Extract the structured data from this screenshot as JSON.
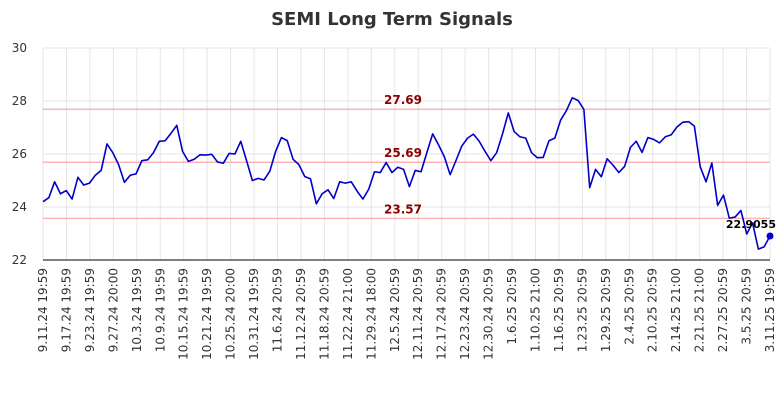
{
  "chart_data": {
    "type": "line",
    "title": "SEMI Long Term Signals",
    "ylim": [
      22,
      30
    ],
    "yticks": [
      "22",
      "24",
      "26",
      "28",
      "30"
    ],
    "ytick_values": [
      22,
      24,
      26,
      28,
      30
    ],
    "xtick_labels": [
      "9.11.24 19:59",
      "9.17.24 19:59",
      "9.23.24 19:59",
      "9.27.24 20:00",
      "10.3.24 19:59",
      "10.9.24 19:59",
      "10.15.24 19:59",
      "10.21.24 19:59",
      "10.25.24 20:00",
      "10.31.24 19:59",
      "11.6.24 20:59",
      "11.12.24 20:59",
      "11.18.24 20:59",
      "11.22.24 21:00",
      "11.29.24 18:00",
      "12.5.24 20:59",
      "12.11.24 20:59",
      "12.17.24 20:59",
      "12.23.24 20:59",
      "12.30.24 20:59",
      "1.6.25 20:59",
      "1.10.25 21:00",
      "1.16.25 20:59",
      "1.23.25 20:59",
      "1.29.25 20:59",
      "2.4.25 20:59",
      "2.10.25 20:59",
      "2.14.25 21:00",
      "2.21.25 21:00",
      "2.27.25 20:59",
      "3.5.25 20:59",
      "3.11.25 19:59"
    ],
    "reference_lines": [
      {
        "value": 27.69,
        "label": "27.69"
      },
      {
        "value": 25.69,
        "label": "25.69"
      },
      {
        "value": 23.57,
        "label": "23.57"
      }
    ],
    "series": [
      {
        "values": [
          24.2,
          24.35,
          24.95,
          24.5,
          24.62,
          24.3,
          25.12,
          24.83,
          24.9,
          25.2,
          25.38,
          26.38,
          26.05,
          25.6,
          24.93,
          25.2,
          25.25,
          25.75,
          25.78,
          26.05,
          26.48,
          26.5,
          26.78,
          27.08,
          26.1,
          25.72,
          25.8,
          25.97,
          25.96,
          25.99,
          25.7,
          25.65,
          26.02,
          26.0,
          26.48,
          25.75,
          25.0,
          25.08,
          25.02,
          25.35,
          26.1,
          26.62,
          26.5,
          25.8,
          25.6,
          25.15,
          25.06,
          24.12,
          24.5,
          24.65,
          24.32,
          24.95,
          24.9,
          24.95,
          24.6,
          24.3,
          24.67,
          25.33,
          25.3,
          25.68,
          25.3,
          25.5,
          25.42,
          24.77,
          25.38,
          25.33,
          26.05,
          26.76,
          26.35,
          25.9,
          25.22,
          25.75,
          26.3,
          26.6,
          26.75,
          26.48,
          26.1,
          25.75,
          26.05,
          26.75,
          27.55,
          26.85,
          26.65,
          26.6,
          26.05,
          25.86,
          25.87,
          26.5,
          26.6,
          27.28,
          27.64,
          28.12,
          28.02,
          27.68,
          24.73,
          25.42,
          25.14,
          25.82,
          25.58,
          25.3,
          25.53,
          26.25,
          26.48,
          26.06,
          26.62,
          26.55,
          26.42,
          26.65,
          26.72,
          27.02,
          27.2,
          27.22,
          27.05,
          25.52,
          24.95,
          25.66,
          24.06,
          24.45,
          23.58,
          23.62,
          23.87,
          22.98,
          23.4,
          22.41,
          22.5,
          22.9055
        ],
        "color": "#0000cc"
      }
    ],
    "last_value": 22.9055,
    "last_value_label": "22.9055",
    "grid": true,
    "colors": {
      "line": "#0000cc",
      "reference": "#ffb3b3",
      "reference_label": "#8b0000",
      "grid": "#e6e6e6",
      "axis": "#000000"
    }
  }
}
